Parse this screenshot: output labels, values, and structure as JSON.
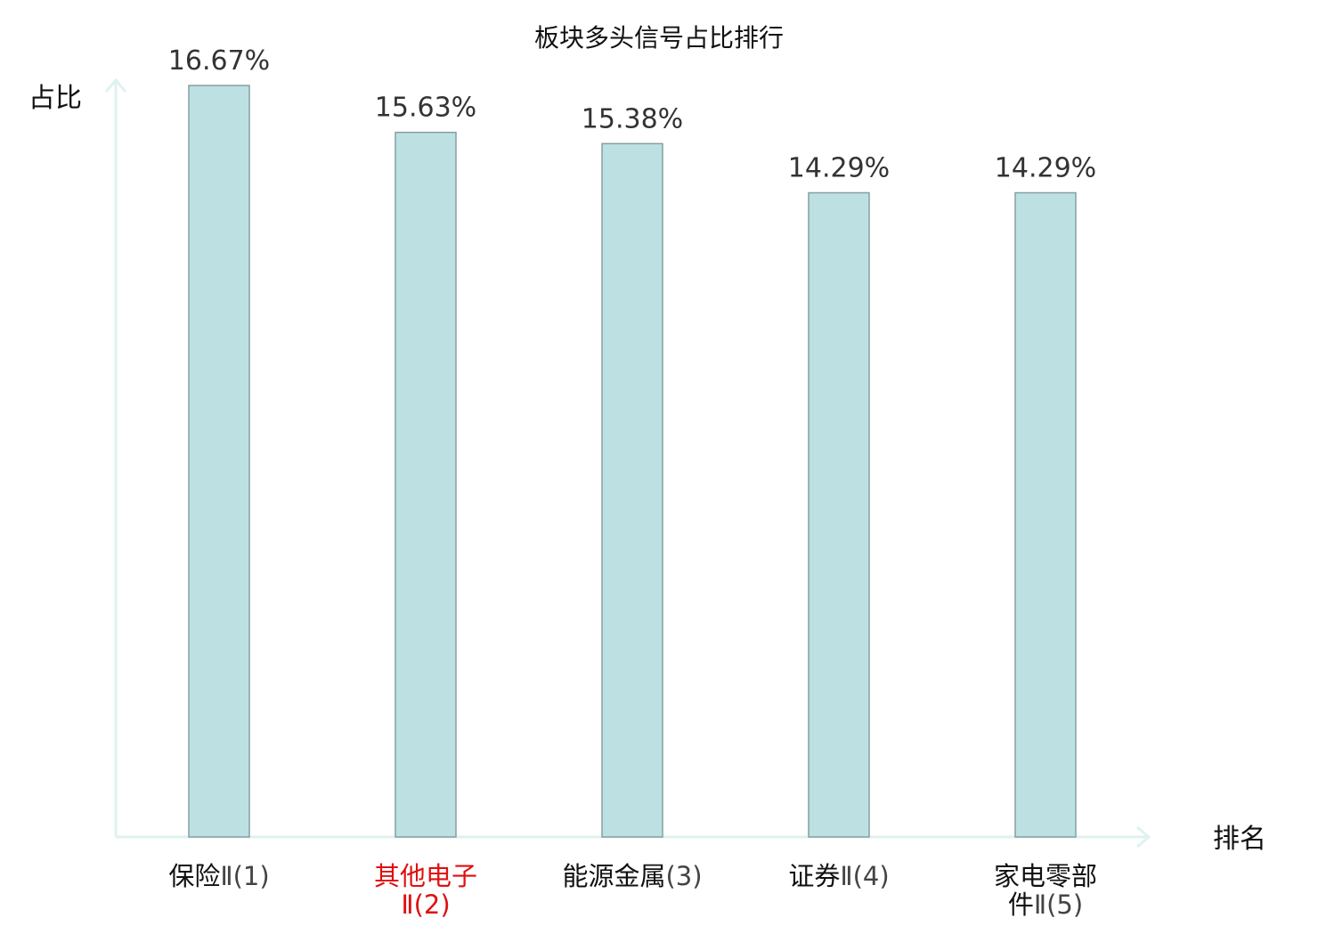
{
  "chart_data": {
    "type": "bar",
    "title": "板块多头信号占比排行",
    "ylabel": "占比",
    "xlabel": "排名",
    "ylim": [
      0,
      17.5
    ],
    "grid": false,
    "legend": "none",
    "categories": [
      {
        "lines": [
          "保险Ⅱ(1)"
        ],
        "name_part": "保险",
        "suffix": "Ⅱ(1)",
        "highlight": false
      },
      {
        "lines": [
          "其他电子",
          "Ⅱ(2)"
        ],
        "name_part": "其他电子",
        "suffix": "Ⅱ(2)",
        "highlight": true
      },
      {
        "lines": [
          "能源金属(3)"
        ],
        "name_part": "能源金属",
        "suffix": "(3)",
        "highlight": false
      },
      {
        "lines": [
          "证券Ⅱ(4)"
        ],
        "name_part": "证券",
        "suffix": "Ⅱ(4)",
        "highlight": false
      },
      {
        "lines": [
          "家电零部",
          "件Ⅱ(5)"
        ],
        "name_part": "家电零部件",
        "suffix": "Ⅱ(5)",
        "highlight": false
      }
    ],
    "values": [
      16.67,
      15.63,
      15.38,
      14.29,
      14.29
    ],
    "value_labels": [
      "16.67%",
      "15.63%",
      "15.38%",
      "14.29%",
      "14.29%"
    ],
    "colors": {
      "bar_fill": "#bde1e3",
      "bar_stroke": "#869f9f",
      "axis": "#dff2ef",
      "highlight_text": "#e01010"
    }
  }
}
